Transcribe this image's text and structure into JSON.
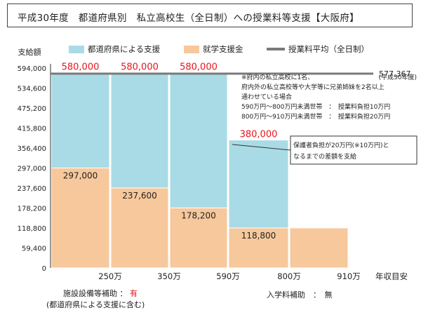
{
  "title": "平成30年度　都道府県別　私立高校生（全日制）への授業料等支援【大阪府】",
  "legend": {
    "pref_support": "都道府県による支援",
    "shugaku": "就学支援金",
    "avg_tuition": "授業料平均（全日制）"
  },
  "colors": {
    "pref_support": "#a9dbe6",
    "shugaku": "#f7c89c",
    "avg_line": "#7a7a7a",
    "red_label": "#e8141b"
  },
  "note": {
    "line1": "※府内の私立高校に1名、",
    "line1_right": "(平成30年度)",
    "line2": "府内外の私立高校等や大学等に兄弟姉妹を2名以上",
    "line3": "通わせている場合",
    "line4": "590万円～800万円未満世帯　：　授業料負担10万円",
    "line5": "800万円～910万円未満世帯　：　授業料負担20万円"
  },
  "callout": {
    "line1": "保護者負担が20万円(※10万円)と",
    "line2": "なるまでの差額を支給"
  },
  "bottom": {
    "shisetsu_label": "施設設備等補助",
    "shisetsu_colon": "：",
    "shisetsu_value": "有",
    "shisetsu_note": "(都道府県による支援に含む)",
    "nyugaku_label": "入学料補助　：　無"
  },
  "chart_data": {
    "type": "bar",
    "ylabel": "支給額",
    "xlabel": "年収目安",
    "y_ticks": [
      "0",
      "59,400",
      "118,800",
      "178,200",
      "237,600",
      "297,000",
      "356,400",
      "415,800",
      "475,200",
      "534,600",
      "594,000"
    ],
    "x_tick_labels": [
      "250万",
      "350万",
      "590万",
      "800万",
      "910万"
    ],
    "ylim": [
      0,
      594000
    ],
    "income_bounds": [
      0,
      250,
      350,
      590,
      800,
      910
    ],
    "series": [
      {
        "name": "就学支援金",
        "values": [
          297000,
          237600,
          178200,
          118800,
          118800
        ]
      },
      {
        "name": "都道府県による支援",
        "values": [
          283000,
          342400,
          401800,
          261200,
          0
        ]
      }
    ],
    "totals_labels": [
      "580,000",
      "580,000",
      "580,000",
      "380,000",
      ""
    ],
    "shugaku_labels": [
      "297,000",
      "237,600",
      "178,200",
      "118,800",
      ""
    ],
    "avg_tuition": {
      "value": 577367,
      "label": "577,367"
    }
  }
}
